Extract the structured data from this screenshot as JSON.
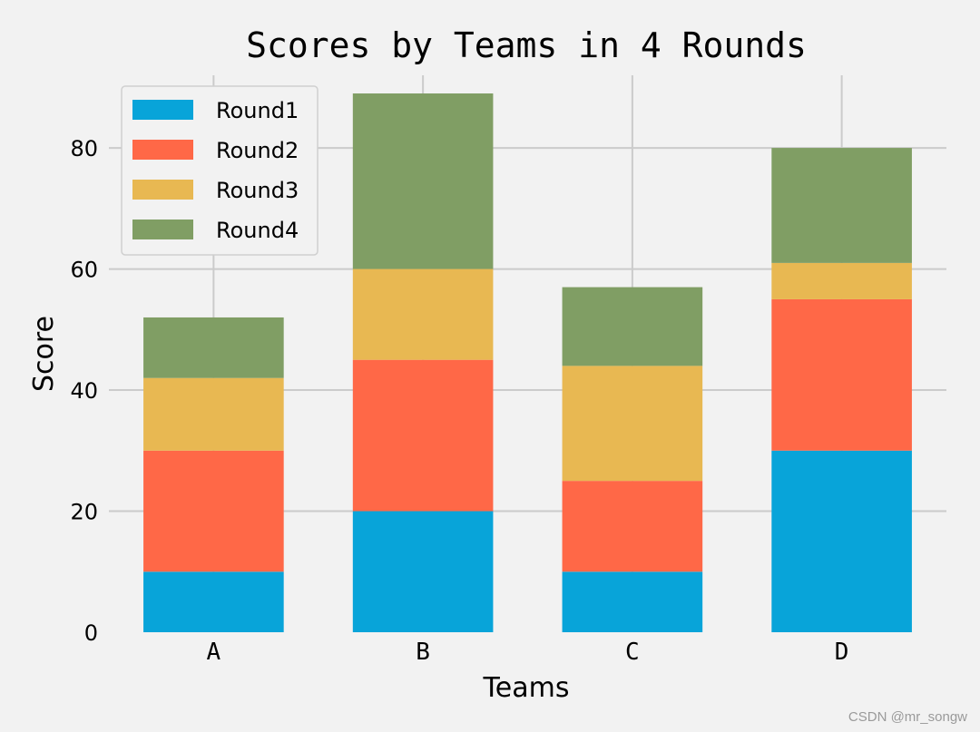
{
  "chart_data": {
    "type": "bar",
    "stacked": true,
    "title": "Scores by Teams in 4 Rounds",
    "xlabel": "Teams",
    "ylabel": "Score",
    "categories": [
      "A",
      "B",
      "C",
      "D"
    ],
    "series": [
      {
        "name": "Round1",
        "values": [
          10,
          20,
          10,
          30
        ],
        "color": "#08a4d9"
      },
      {
        "name": "Round2",
        "values": [
          20,
          25,
          15,
          25
        ],
        "color": "#ff6847"
      },
      {
        "name": "Round3",
        "values": [
          12,
          15,
          19,
          6
        ],
        "color": "#e8b852"
      },
      {
        "name": "Round4",
        "values": [
          10,
          29,
          13,
          19
        ],
        "color": "#809e64"
      }
    ],
    "ylim": [
      0,
      92
    ],
    "yticks": [
      0,
      20,
      40,
      60,
      80
    ],
    "grid": true,
    "legend_position": "top-left"
  },
  "watermark": "CSDN @mr_songw"
}
